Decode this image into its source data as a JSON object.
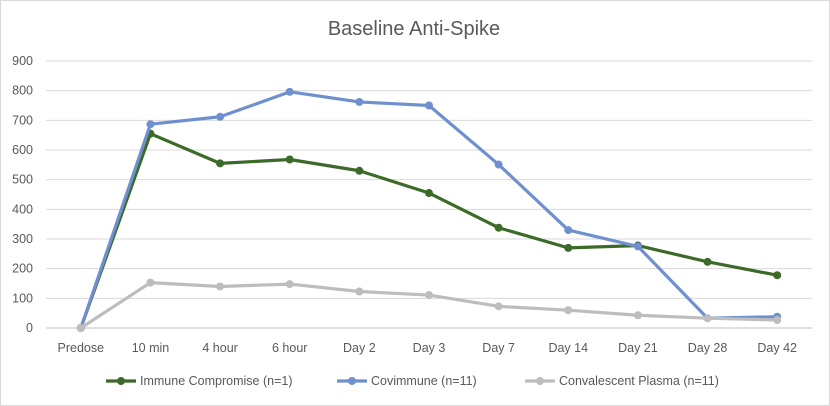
{
  "chart_data": {
    "type": "line",
    "title": "Baseline Anti-Spike",
    "xlabel": "",
    "ylabel": "",
    "categories": [
      "Predose",
      "10 min",
      "4 hour",
      "6 hour",
      "Day 2",
      "Day 3",
      "Day 7",
      "Day 14",
      "Day 21",
      "Day 28",
      "Day 42"
    ],
    "ylim": [
      0,
      900
    ],
    "yticks": [
      0,
      100,
      200,
      300,
      400,
      500,
      600,
      700,
      800,
      900
    ],
    "grid": true,
    "legend_position": "bottom",
    "series": [
      {
        "name": "Immune Compromise (n=1)",
        "color": "#3c6a28",
        "values": [
          0,
          655,
          555,
          568,
          530,
          455,
          338,
          270,
          278,
          223,
          178
        ]
      },
      {
        "name": "Covimmune (n=11)",
        "color": "#6e90cf",
        "values": [
          0,
          687,
          712,
          796,
          762,
          750,
          551,
          330,
          275,
          33,
          38
        ]
      },
      {
        "name": "Convalescent Plasma (n=11)",
        "color": "#bdbdbd",
        "values": [
          0,
          153,
          140,
          148,
          123,
          111,
          73,
          60,
          43,
          33,
          27
        ]
      }
    ]
  }
}
